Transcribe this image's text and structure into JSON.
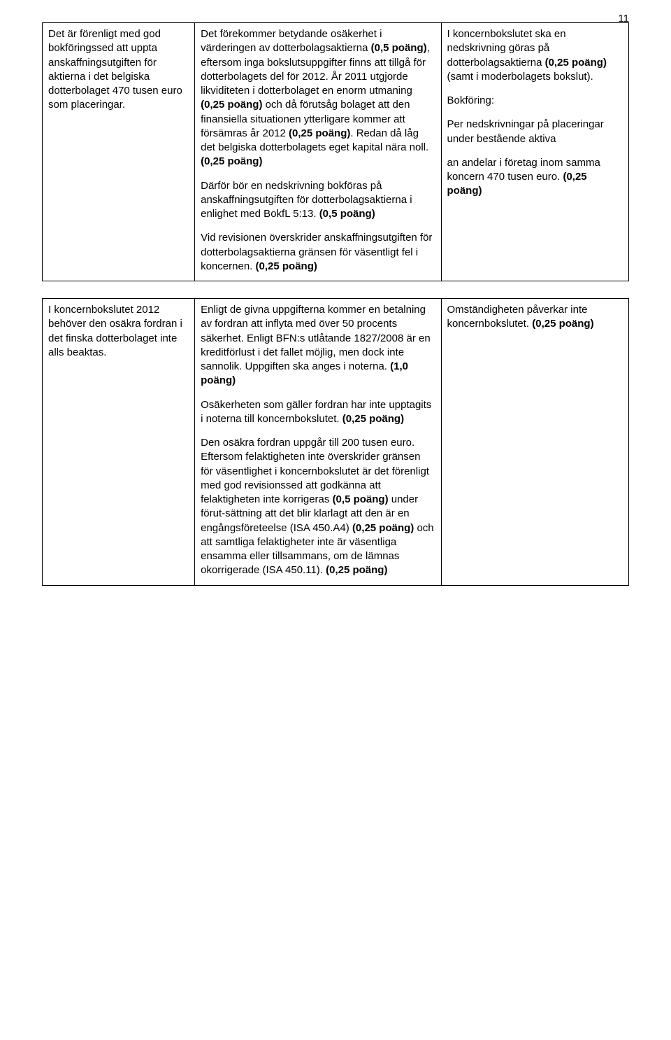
{
  "pageNumber": "11",
  "style": {
    "pageWidthPx": 960,
    "pageHeightPx": 1486,
    "backgroundColor": "#ffffff",
    "textColor": "#000000",
    "borderColor": "#000000",
    "fontFamily": "Arial",
    "bodyFontSizePt": 11,
    "pageNumberFontSizePt": 11,
    "columnWidthsPercent": [
      26,
      42,
      32
    ]
  },
  "table1": {
    "col1": {
      "p1": "Det är förenligt med god bokföringssed att uppta anskaffningsutgiften för aktierna i det belgiska dotterbolaget 470 tusen euro som placeringar."
    },
    "col2": {
      "p1_a": "Det förekommer betydande osäkerhet i värderingen av dotterbolagsaktierna ",
      "p1_bold1": "(0,5 poäng)",
      "p1_b": ", eftersom inga bokslutsuppgifter finns att tillgå för dotterbolagets del för 2012. År 2011 utgjorde likviditeten i dotterbolaget en enorm utmaning ",
      "p1_bold2": "(0,25 poäng)",
      "p1_c": " och då förutsåg bolaget att den finansiella situationen ytterligare kommer att försämras år 2012 ",
      "p1_bold3": "(0,25 poäng)",
      "p1_d": ". Redan då låg det belgiska dotterbolagets eget kapital nära noll. ",
      "p1_bold4": "(0,25 poäng)",
      "p2_a": "Därför bör en nedskrivning bokföras på anskaffningsutgiften för dotterbolagsaktierna i enlighet med BokfL 5:13. ",
      "p2_bold": "(0,5 poäng)",
      "p3_a": "Vid revisionen överskrider anskaffningsutgiften för dotterbolagsaktierna gränsen för väsentligt fel i koncernen. ",
      "p3_bold": "(0,25 poäng)"
    },
    "col3": {
      "p1_a": "I koncernbokslutet ska en nedskrivning göras på dotterbolagsaktierna ",
      "p1_bold": "(0,25 poäng)",
      "p1_b": " (samt i moderbolagets bokslut).",
      "p2": "Bokföring:",
      "p3": "Per nedskrivningar på placeringar under bestående aktiva",
      "p4_a": "an andelar i företag inom samma koncern 470 tusen euro. ",
      "p4_bold": "(0,25 poäng)"
    }
  },
  "table2": {
    "col1": {
      "p1": "I koncernbokslutet 2012 behöver den osäkra fordran i det finska dotterbolaget inte alls beaktas."
    },
    "col2": {
      "p1_a": "Enligt de givna uppgifterna kommer en betalning av fordran att inflyta med över 50 procents säkerhet. Enligt BFN:s utlåtande 1827/2008 är en kreditförlust i det fallet möjlig, men dock inte sannolik. Uppgiften ska anges i noterna. ",
      "p1_bold": "(1,0 poäng)",
      "p2_a": "Osäkerheten som gäller fordran har inte upptagits i noterna till koncernbokslutet. ",
      "p2_bold": "(0,25 poäng)",
      "p3_a": "Den osäkra fordran uppgår till 200 tusen euro. Eftersom felaktigheten inte överskrider gränsen för väsentlighet i koncernbokslutet är det förenligt med god revisionssed att godkänna att felaktigheten inte korrigeras ",
      "p3_bold1": "(0,5 poäng)",
      "p3_b": " under förut-sättning att det blir klarlagt att den är en engångsföreteelse (ISA 450.A4) ",
      "p3_bold2": "(0,25 poäng)",
      "p3_c": " och att samtliga felaktigheter inte är väsentliga ensamma eller tillsammans, om de lämnas okorrigerade (ISA 450.11). ",
      "p3_bold3": "(0,25 poäng)"
    },
    "col3": {
      "p1_a": "Omständigheten påverkar inte koncernbokslutet. ",
      "p1_bold": "(0,25 poäng)"
    }
  }
}
